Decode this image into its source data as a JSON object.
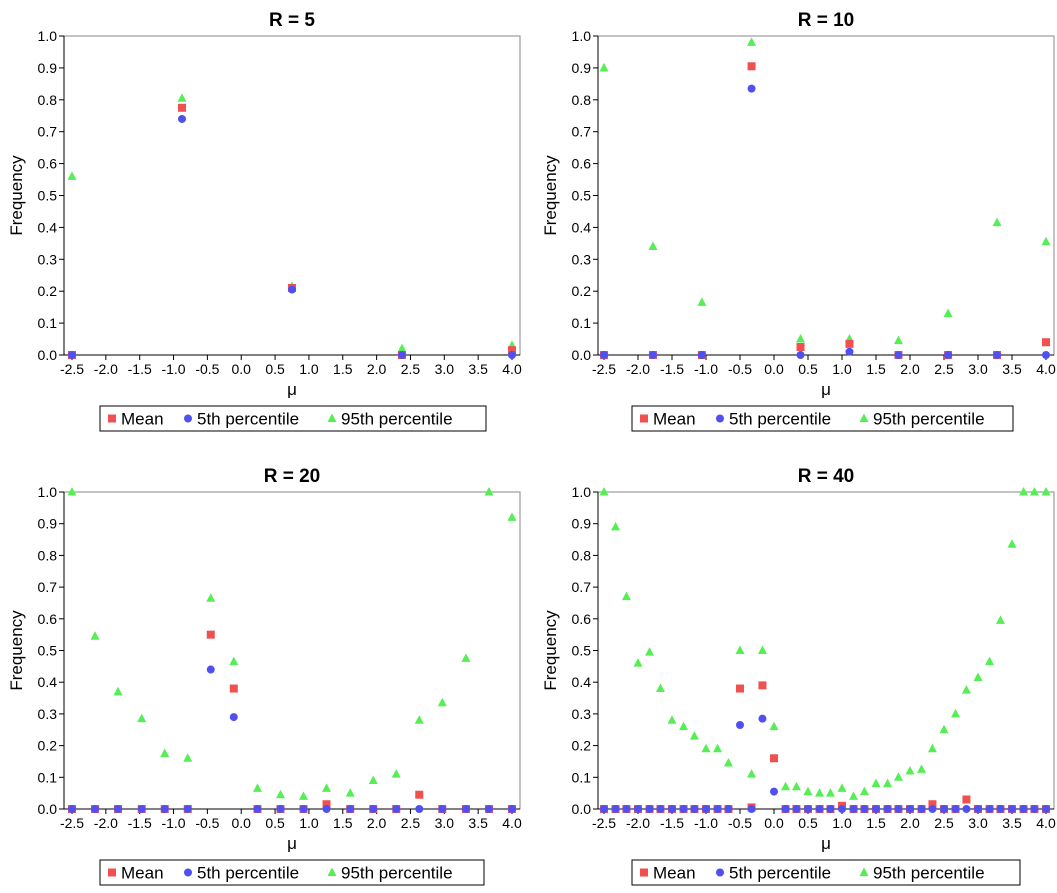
{
  "colors": {
    "mean": "#f05050",
    "p5": "#5050f0",
    "p95": "#55ee55",
    "axis": "#000000",
    "frame": "#888888"
  },
  "chart_data": [
    {
      "type": "scatter",
      "title": "R = 5",
      "xlabel": "μ",
      "ylabel": "Frequency",
      "xlim": [
        -2.6,
        4.05
      ],
      "ylim": [
        0,
        1.0
      ],
      "x_ticks": [
        "-2.5",
        "-2.0",
        "-1.5",
        "-1.0",
        "-0.5",
        "0.0",
        "0.5",
        "1.0",
        "1.5",
        "2.0",
        "2.5",
        "3.0",
        "3.5",
        "4.0"
      ],
      "y_ticks": [
        "0.0",
        "0.1",
        "0.2",
        "0.3",
        "0.4",
        "0.5",
        "0.6",
        "0.7",
        "0.8",
        "0.9",
        "1.0"
      ],
      "grid": false,
      "legend": [
        "Mean",
        "5th percentile",
        "95th percentile"
      ],
      "series": [
        {
          "name": "Mean",
          "marker": "square",
          "points": [
            [
              -2.5,
              0.0
            ],
            [
              -0.875,
              0.775
            ],
            [
              0.75,
              0.21
            ],
            [
              2.375,
              0.0
            ],
            [
              4.0,
              0.015
            ]
          ]
        },
        {
          "name": "5th percentile",
          "marker": "circle",
          "points": [
            [
              -2.5,
              0.0
            ],
            [
              -0.875,
              0.74
            ],
            [
              0.75,
              0.205
            ],
            [
              2.375,
              0.0
            ],
            [
              4.0,
              0.0
            ]
          ]
        },
        {
          "name": "95th percentile",
          "marker": "triangle",
          "points": [
            [
              -2.5,
              0.56
            ],
            [
              -0.875,
              0.805
            ],
            [
              0.75,
              0.215
            ],
            [
              2.375,
              0.02
            ],
            [
              4.0,
              0.03
            ]
          ]
        }
      ]
    },
    {
      "type": "scatter",
      "title": "R = 10",
      "xlabel": "μ",
      "ylabel": "Frequency",
      "xlim": [
        -2.6,
        4.05
      ],
      "ylim": [
        0,
        1.0
      ],
      "x_ticks": [
        "-2.5",
        "-2.0",
        "-1.5",
        "-1.0",
        "-0.5",
        "0.0",
        "0.5",
        "1.0",
        "1.5",
        "2.0",
        "2.5",
        "3.0",
        "3.5",
        "4.0"
      ],
      "y_ticks": [
        "0.0",
        "0.1",
        "0.2",
        "0.3",
        "0.4",
        "0.5",
        "0.6",
        "0.7",
        "0.8",
        "0.9",
        "1.0"
      ],
      "grid": false,
      "legend": [
        "Mean",
        "5th percentile",
        "95th percentile"
      ],
      "series": [
        {
          "name": "Mean",
          "marker": "square",
          "points": [
            [
              -2.5,
              0.0
            ],
            [
              -1.78,
              0.0
            ],
            [
              -1.06,
              0.0
            ],
            [
              -0.33,
              0.905
            ],
            [
              0.39,
              0.025
            ],
            [
              1.11,
              0.035
            ],
            [
              1.83,
              0.0
            ],
            [
              2.56,
              0.0
            ],
            [
              3.28,
              0.0
            ],
            [
              4.0,
              0.04
            ]
          ]
        },
        {
          "name": "5th percentile",
          "marker": "circle",
          "points": [
            [
              -2.5,
              0.0
            ],
            [
              -1.78,
              0.0
            ],
            [
              -1.06,
              0.0
            ],
            [
              -0.33,
              0.835
            ],
            [
              0.39,
              0.0
            ],
            [
              1.11,
              0.01
            ],
            [
              1.83,
              0.0
            ],
            [
              2.56,
              0.0
            ],
            [
              3.28,
              0.0
            ],
            [
              4.0,
              0.0
            ]
          ]
        },
        {
          "name": "95th percentile",
          "marker": "triangle",
          "points": [
            [
              -2.5,
              0.9
            ],
            [
              -1.78,
              0.34
            ],
            [
              -1.06,
              0.165
            ],
            [
              -0.33,
              0.98
            ],
            [
              0.39,
              0.05
            ],
            [
              1.11,
              0.05
            ],
            [
              1.83,
              0.045
            ],
            [
              2.56,
              0.13
            ],
            [
              3.28,
              0.415
            ],
            [
              4.0,
              0.355
            ]
          ]
        }
      ]
    },
    {
      "type": "scatter",
      "title": "R = 20",
      "xlabel": "μ",
      "ylabel": "Frequency",
      "xlim": [
        -2.6,
        4.05
      ],
      "ylim": [
        0,
        1.0
      ],
      "x_ticks": [
        "-2.5",
        "-2.0",
        "-1.5",
        "-1.0",
        "-0.5",
        "0.0",
        "0.5",
        "1.0",
        "1.5",
        "2.0",
        "2.5",
        "3.0",
        "3.5",
        "4.0"
      ],
      "y_ticks": [
        "0.0",
        "0.1",
        "0.2",
        "0.3",
        "0.4",
        "0.5",
        "0.6",
        "0.7",
        "0.8",
        "0.9",
        "1.0"
      ],
      "grid": false,
      "legend": [
        "Mean",
        "5th percentile",
        "95th percentile"
      ],
      "series": [
        {
          "name": "Mean",
          "marker": "square",
          "points": [
            [
              -2.5,
              0.0
            ],
            [
              -2.16,
              0.0
            ],
            [
              -1.82,
              0.0
            ],
            [
              -1.47,
              0.0
            ],
            [
              -1.13,
              0.0
            ],
            [
              -0.79,
              0.0
            ],
            [
              -0.45,
              0.55
            ],
            [
              -0.11,
              0.38
            ],
            [
              0.24,
              0.0
            ],
            [
              0.58,
              0.0
            ],
            [
              0.92,
              0.0
            ],
            [
              1.26,
              0.015
            ],
            [
              1.61,
              0.0
            ],
            [
              1.95,
              0.0
            ],
            [
              2.29,
              0.0
            ],
            [
              2.63,
              0.045
            ],
            [
              2.97,
              0.0
            ],
            [
              3.32,
              0.0
            ],
            [
              3.66,
              0.0
            ],
            [
              4.0,
              0.0
            ]
          ]
        },
        {
          "name": "5th percentile",
          "marker": "circle",
          "points": [
            [
              -2.5,
              0.0
            ],
            [
              -2.16,
              0.0
            ],
            [
              -1.82,
              0.0
            ],
            [
              -1.47,
              0.0
            ],
            [
              -1.13,
              0.0
            ],
            [
              -0.79,
              0.0
            ],
            [
              -0.45,
              0.44
            ],
            [
              -0.11,
              0.29
            ],
            [
              0.24,
              0.0
            ],
            [
              0.58,
              0.0
            ],
            [
              0.92,
              0.0
            ],
            [
              1.26,
              0.0
            ],
            [
              1.61,
              0.0
            ],
            [
              1.95,
              0.0
            ],
            [
              2.29,
              0.0
            ],
            [
              2.63,
              0.0
            ],
            [
              2.97,
              0.0
            ],
            [
              3.32,
              0.0
            ],
            [
              3.66,
              0.0
            ],
            [
              4.0,
              0.0
            ]
          ]
        },
        {
          "name": "95th percentile",
          "marker": "triangle",
          "points": [
            [
              -2.5,
              1.0
            ],
            [
              -2.16,
              0.545
            ],
            [
              -1.82,
              0.37
            ],
            [
              -1.47,
              0.285
            ],
            [
              -1.13,
              0.175
            ],
            [
              -0.79,
              0.16
            ],
            [
              -0.45,
              0.665
            ],
            [
              -0.11,
              0.465
            ],
            [
              0.24,
              0.065
            ],
            [
              0.58,
              0.045
            ],
            [
              0.92,
              0.04
            ],
            [
              1.26,
              0.065
            ],
            [
              1.61,
              0.05
            ],
            [
              1.95,
              0.09
            ],
            [
              2.29,
              0.11
            ],
            [
              2.63,
              0.28
            ],
            [
              2.97,
              0.335
            ],
            [
              3.32,
              0.475
            ],
            [
              3.66,
              1.0
            ],
            [
              4.0,
              0.92
            ]
          ]
        }
      ]
    },
    {
      "type": "scatter",
      "title": "R = 40",
      "xlabel": "μ",
      "ylabel": "Frequency",
      "xlim": [
        -2.6,
        4.05
      ],
      "ylim": [
        0,
        1.0
      ],
      "x_ticks": [
        "-2.5",
        "-2.0",
        "-1.5",
        "-1.0",
        "-0.5",
        "0.0",
        "0.5",
        "1.0",
        "1.5",
        "2.0",
        "2.5",
        "3.0",
        "3.5",
        "4.0"
      ],
      "y_ticks": [
        "0.0",
        "0.1",
        "0.2",
        "0.3",
        "0.4",
        "0.5",
        "0.6",
        "0.7",
        "0.8",
        "0.9",
        "1.0"
      ],
      "grid": false,
      "legend": [
        "Mean",
        "5th percentile",
        "95th percentile"
      ],
      "series": [
        {
          "name": "Mean",
          "marker": "square",
          "points": [
            [
              -2.5,
              0.0
            ],
            [
              -2.33,
              0.0
            ],
            [
              -2.17,
              0.0
            ],
            [
              -2.0,
              0.0
            ],
            [
              -1.83,
              0.0
            ],
            [
              -1.67,
              0.0
            ],
            [
              -1.5,
              0.0
            ],
            [
              -1.33,
              0.0
            ],
            [
              -1.17,
              0.0
            ],
            [
              -1.0,
              0.0
            ],
            [
              -0.83,
              0.0
            ],
            [
              -0.67,
              0.0
            ],
            [
              -0.5,
              0.38
            ],
            [
              -0.33,
              0.005
            ],
            [
              -0.17,
              0.39
            ],
            [
              0.0,
              0.16
            ],
            [
              0.17,
              0.0
            ],
            [
              0.33,
              0.0
            ],
            [
              0.5,
              0.0
            ],
            [
              0.67,
              0.0
            ],
            [
              0.83,
              0.0
            ],
            [
              1.0,
              0.01
            ],
            [
              1.17,
              0.0
            ],
            [
              1.33,
              0.0
            ],
            [
              1.5,
              0.0
            ],
            [
              1.67,
              0.0
            ],
            [
              1.83,
              0.0
            ],
            [
              2.0,
              0.0
            ],
            [
              2.17,
              0.0
            ],
            [
              2.33,
              0.015
            ],
            [
              2.5,
              0.0
            ],
            [
              2.67,
              0.0
            ],
            [
              2.83,
              0.03
            ],
            [
              3.0,
              0.0
            ],
            [
              3.17,
              0.0
            ],
            [
              3.33,
              0.0
            ],
            [
              3.5,
              0.0
            ],
            [
              3.67,
              0.0
            ],
            [
              3.83,
              0.0
            ],
            [
              4.0,
              0.0
            ]
          ]
        },
        {
          "name": "5th percentile",
          "marker": "circle",
          "points": [
            [
              -2.5,
              0.0
            ],
            [
              -2.33,
              0.0
            ],
            [
              -2.17,
              0.0
            ],
            [
              -2.0,
              0.0
            ],
            [
              -1.83,
              0.0
            ],
            [
              -1.67,
              0.0
            ],
            [
              -1.5,
              0.0
            ],
            [
              -1.33,
              0.0
            ],
            [
              -1.17,
              0.0
            ],
            [
              -1.0,
              0.0
            ],
            [
              -0.83,
              0.0
            ],
            [
              -0.67,
              0.0
            ],
            [
              -0.5,
              0.265
            ],
            [
              -0.33,
              0.0
            ],
            [
              -0.17,
              0.285
            ],
            [
              0.0,
              0.055
            ],
            [
              0.17,
              0.0
            ],
            [
              0.33,
              0.0
            ],
            [
              0.5,
              0.0
            ],
            [
              0.67,
              0.0
            ],
            [
              0.83,
              0.0
            ],
            [
              1.0,
              0.0
            ],
            [
              1.17,
              0.0
            ],
            [
              1.33,
              0.0
            ],
            [
              1.5,
              0.0
            ],
            [
              1.67,
              0.0
            ],
            [
              1.83,
              0.0
            ],
            [
              2.0,
              0.0
            ],
            [
              2.17,
              0.0
            ],
            [
              2.33,
              0.0
            ],
            [
              2.5,
              0.0
            ],
            [
              2.67,
              0.0
            ],
            [
              2.83,
              0.0
            ],
            [
              3.0,
              0.0
            ],
            [
              3.17,
              0.0
            ],
            [
              3.33,
              0.0
            ],
            [
              3.5,
              0.0
            ],
            [
              3.67,
              0.0
            ],
            [
              3.83,
              0.0
            ],
            [
              4.0,
              0.0
            ]
          ]
        },
        {
          "name": "95th percentile",
          "marker": "triangle",
          "points": [
            [
              -2.5,
              1.0
            ],
            [
              -2.33,
              0.89
            ],
            [
              -2.17,
              0.67
            ],
            [
              -2.0,
              0.46
            ],
            [
              -1.83,
              0.495
            ],
            [
              -1.67,
              0.38
            ],
            [
              -1.5,
              0.28
            ],
            [
              -1.33,
              0.26
            ],
            [
              -1.17,
              0.23
            ],
            [
              -1.0,
              0.19
            ],
            [
              -0.83,
              0.19
            ],
            [
              -0.67,
              0.145
            ],
            [
              -0.5,
              0.5
            ],
            [
              -0.33,
              0.11
            ],
            [
              -0.17,
              0.5
            ],
            [
              0.0,
              0.26
            ],
            [
              0.17,
              0.07
            ],
            [
              0.33,
              0.07
            ],
            [
              0.5,
              0.055
            ],
            [
              0.67,
              0.05
            ],
            [
              0.83,
              0.05
            ],
            [
              1.0,
              0.065
            ],
            [
              1.17,
              0.04
            ],
            [
              1.33,
              0.055
            ],
            [
              1.5,
              0.08
            ],
            [
              1.67,
              0.08
            ],
            [
              1.83,
              0.1
            ],
            [
              2.0,
              0.12
            ],
            [
              2.17,
              0.125
            ],
            [
              2.33,
              0.19
            ],
            [
              2.5,
              0.25
            ],
            [
              2.67,
              0.3
            ],
            [
              2.83,
              0.375
            ],
            [
              3.0,
              0.415
            ],
            [
              3.17,
              0.465
            ],
            [
              3.33,
              0.595
            ],
            [
              3.5,
              0.835
            ],
            [
              3.67,
              1.0
            ],
            [
              3.83,
              1.0
            ],
            [
              4.0,
              1.0
            ]
          ]
        }
      ]
    }
  ]
}
